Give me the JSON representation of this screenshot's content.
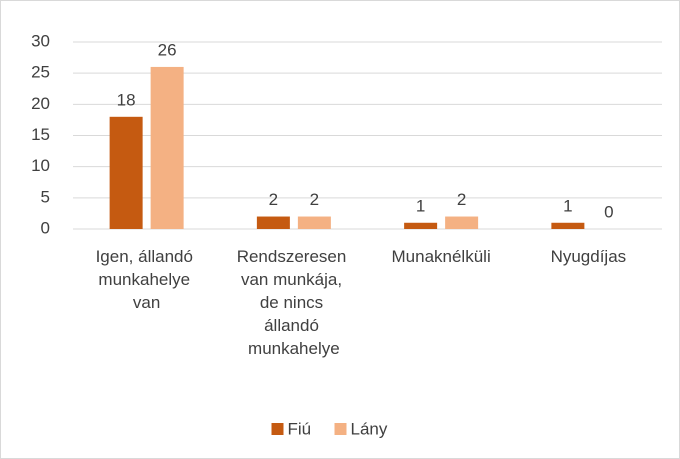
{
  "chart_data": {
    "type": "bar",
    "categories": [
      "Igen, állandó munkahelye van",
      "Rendszeresen van munkája, de nincs állandó munkahelye",
      "Munaknélküli",
      "Nyugdíjas"
    ],
    "series": [
      {
        "name": "Fiú",
        "color": "#c55a11",
        "values": [
          18,
          2,
          1,
          1
        ]
      },
      {
        "name": "Lány",
        "color": "#f4b183",
        "values": [
          26,
          2,
          2,
          0
        ]
      }
    ],
    "ylim": [
      0,
      30
    ],
    "yticks": [
      0,
      5,
      10,
      15,
      20,
      25,
      30
    ],
    "grid": true,
    "legend": "bottom"
  }
}
